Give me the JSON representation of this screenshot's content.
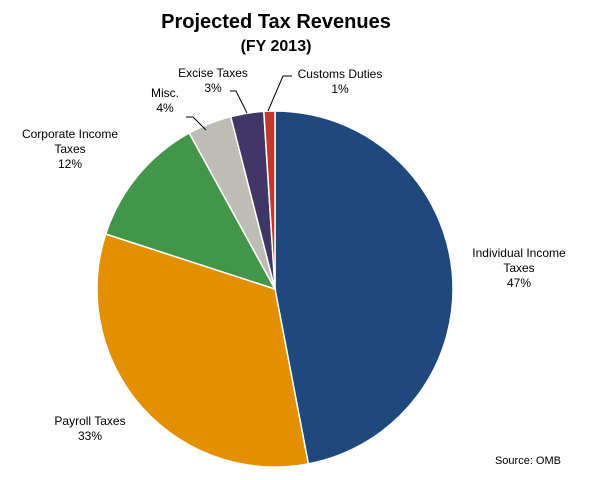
{
  "chart_data": {
    "type": "pie",
    "title": "Projected Tax Revenues",
    "subtitle": "(FY 2013)",
    "source": "Source: OMB",
    "start_angle_deg": 0,
    "direction": "clockwise",
    "slices": [
      {
        "label_lines": [
          "Individual  Income",
          "Taxes"
        ],
        "value": 47,
        "value_label": "47%",
        "color": "#1F497D"
      },
      {
        "label_lines": [
          "Payroll Taxes"
        ],
        "value": 33,
        "value_label": "33%",
        "color": "#E38F00"
      },
      {
        "label_lines": [
          "Corporate  Income",
          "Taxes"
        ],
        "value": 12,
        "value_label": "12%",
        "color": "#43954A"
      },
      {
        "label_lines": [
          "Misc."
        ],
        "value": 4,
        "value_label": "4%",
        "color": "#BDBDB5"
      },
      {
        "label_lines": [
          "Excise Taxes"
        ],
        "value": 3,
        "value_label": "3%",
        "color": "#403767"
      },
      {
        "label_lines": [
          "Customs Duties"
        ],
        "value": 1,
        "value_label": "1%",
        "color": "#C0392B"
      }
    ]
  }
}
